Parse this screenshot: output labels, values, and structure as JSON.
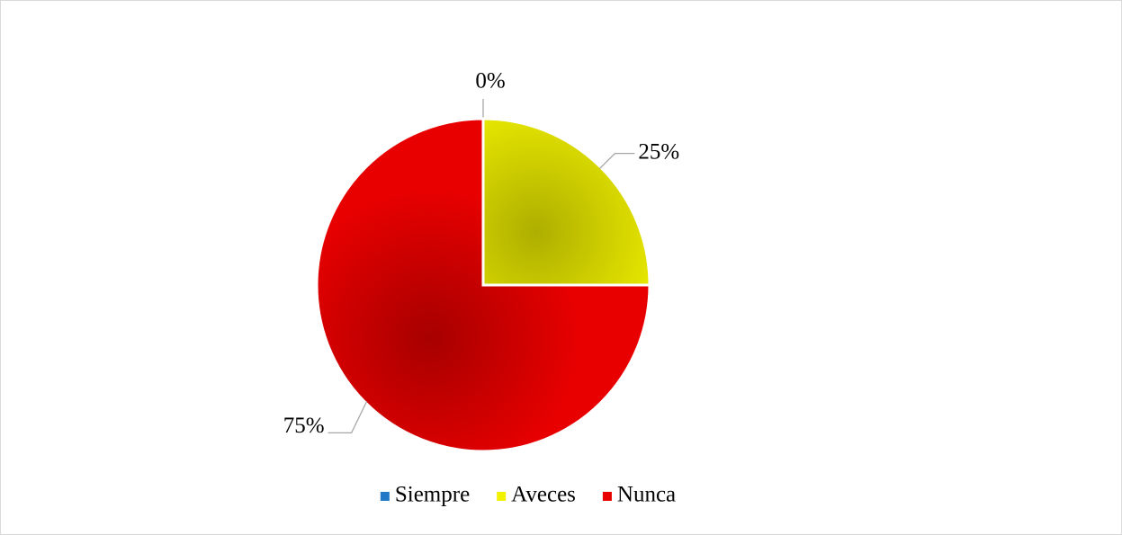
{
  "chart_data": {
    "type": "pie",
    "categories": [
      "Siempre",
      "Aveces",
      "Nunca"
    ],
    "values": [
      0,
      25,
      75
    ],
    "value_labels": [
      "0%",
      "25%",
      "75%"
    ],
    "colors": [
      "#1f77c8",
      "#f2f200",
      "#e80000"
    ],
    "legend": "bottom"
  }
}
